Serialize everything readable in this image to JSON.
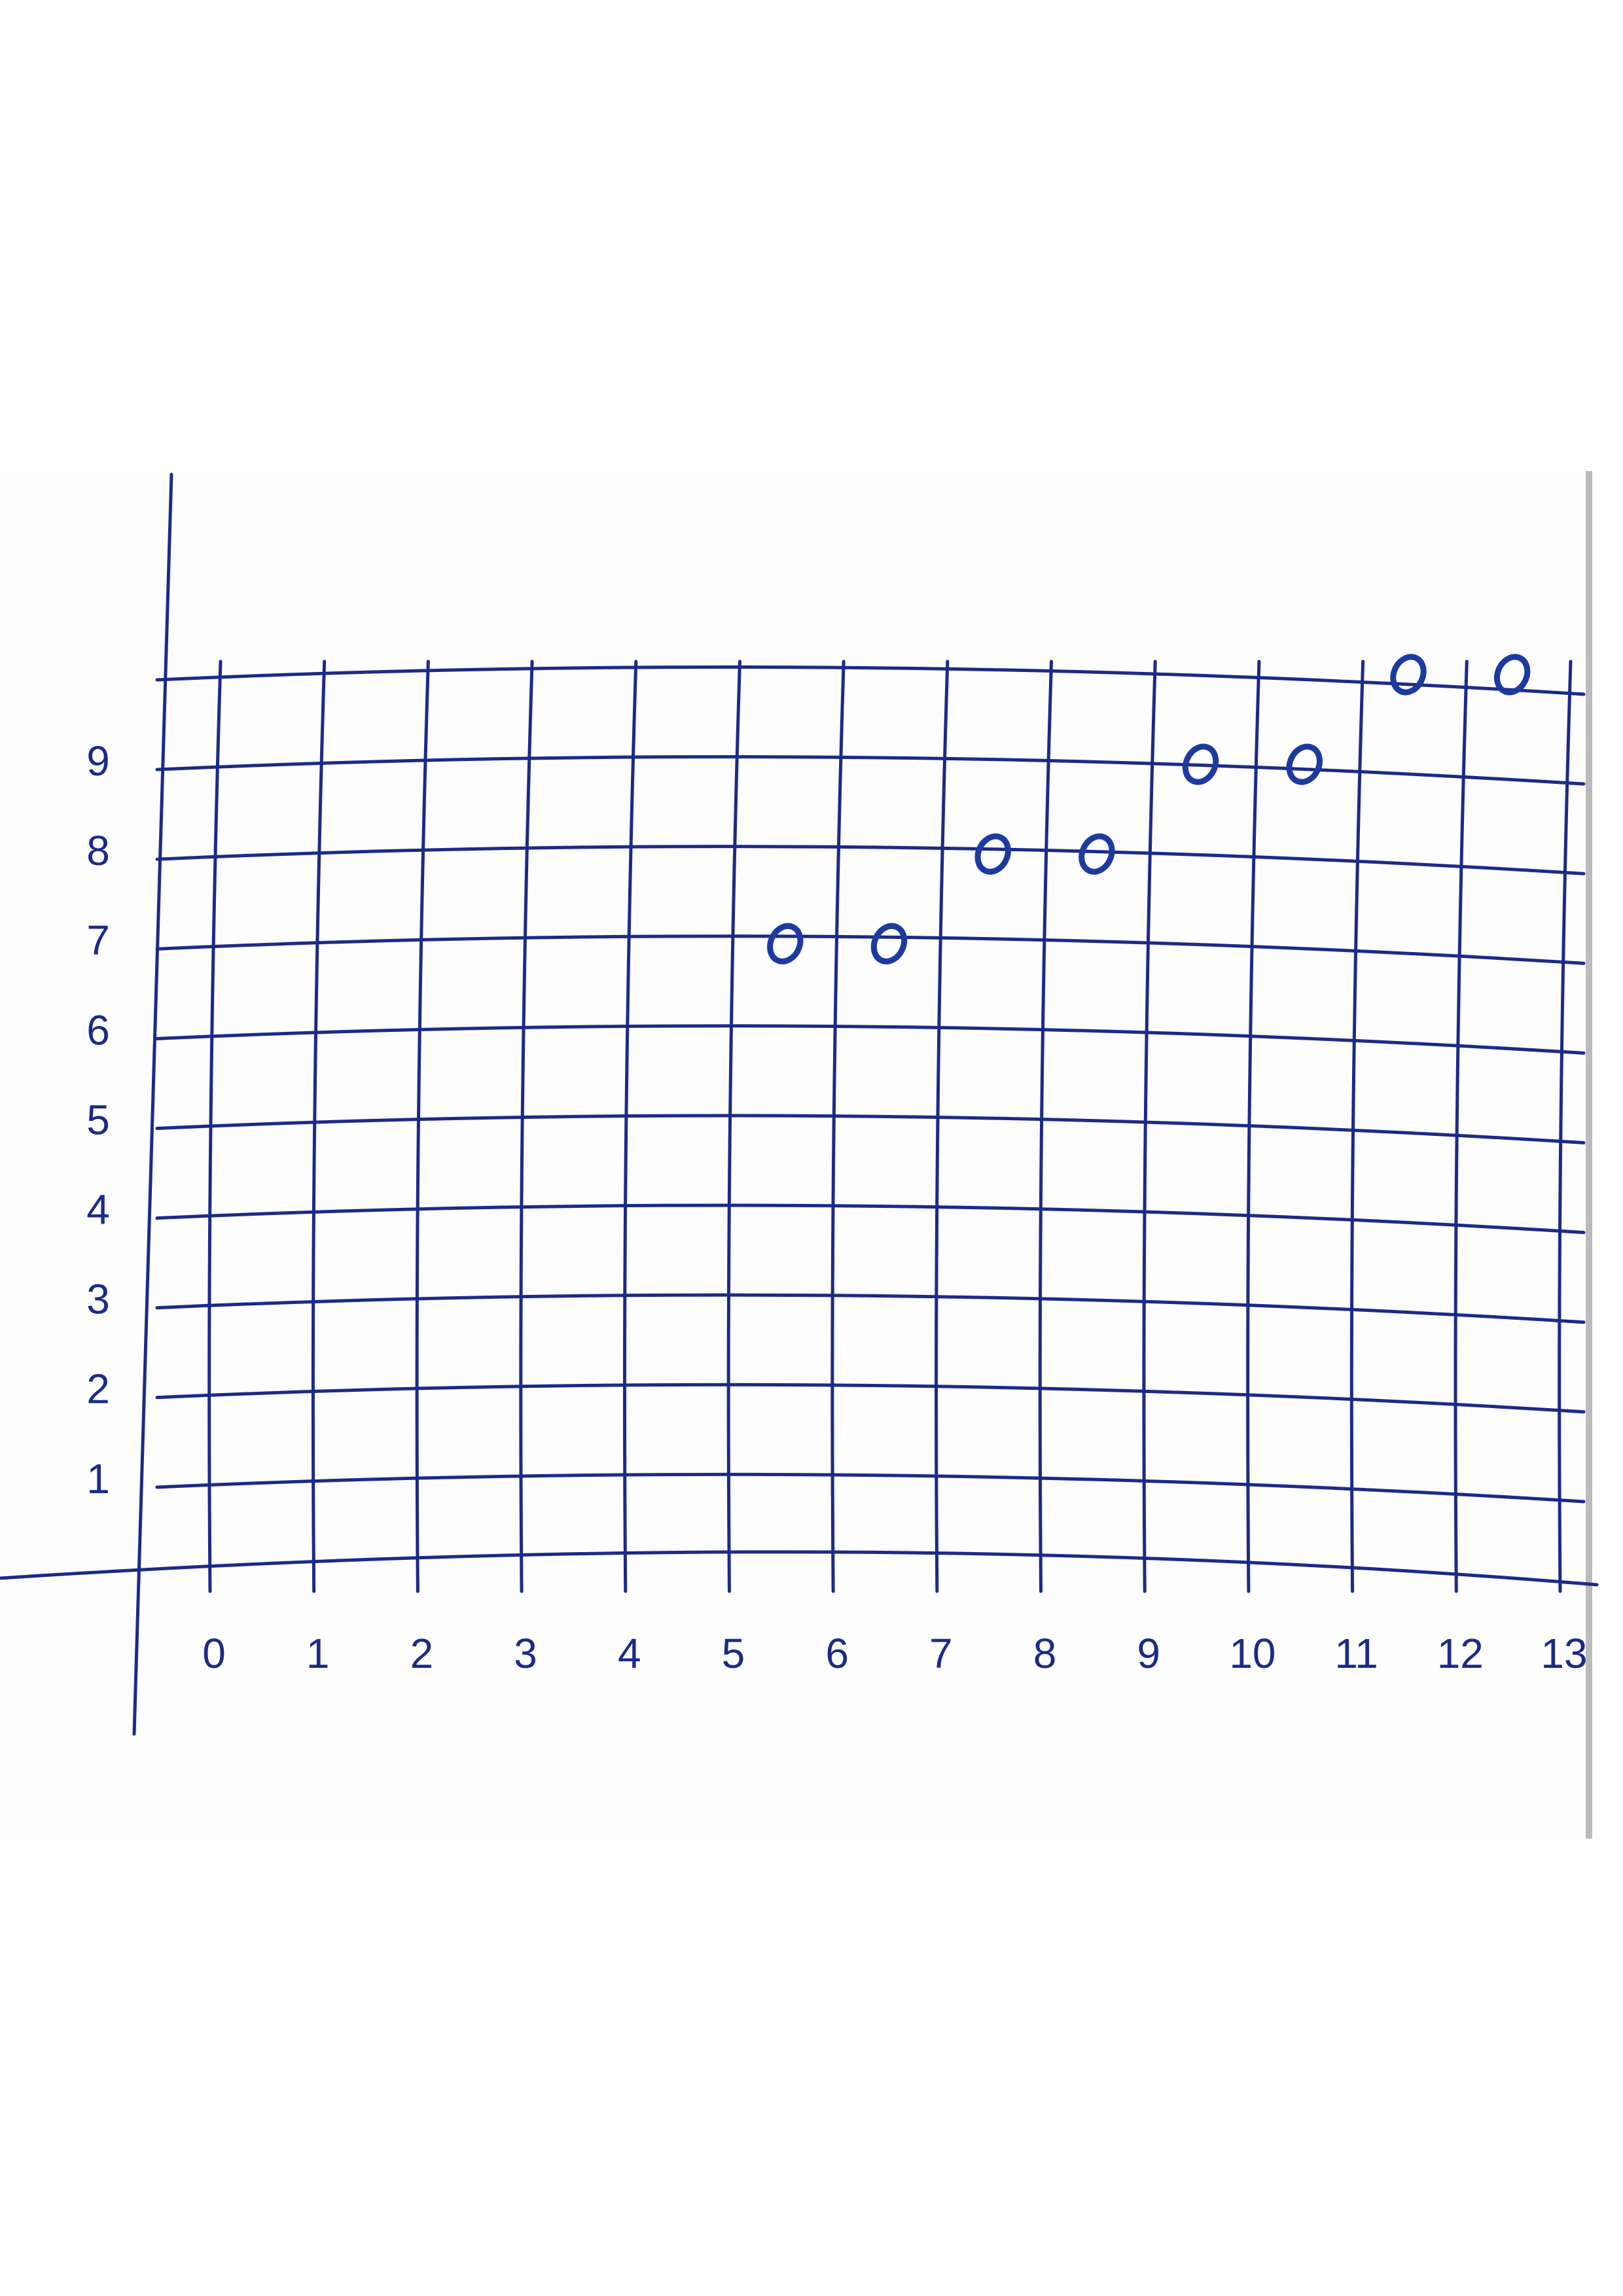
{
  "chart_data": {
    "type": "scatter",
    "x": [
      5.5,
      6.5,
      7.5,
      8.5,
      9.5,
      10.5,
      11.5,
      12.5
    ],
    "values": [
      7,
      7,
      8,
      8,
      9,
      9,
      10,
      10
    ],
    "color": "#1c3aa0",
    "xlim": [
      0,
      13
    ],
    "xticks": [
      0,
      1,
      2,
      3,
      4,
      5,
      6,
      7,
      8,
      9,
      10,
      11,
      12,
      13
    ],
    "ylim": [
      0,
      10
    ],
    "yticks": [
      1,
      2,
      3,
      4,
      5,
      6,
      7,
      8,
      9
    ],
    "grid": true
  }
}
